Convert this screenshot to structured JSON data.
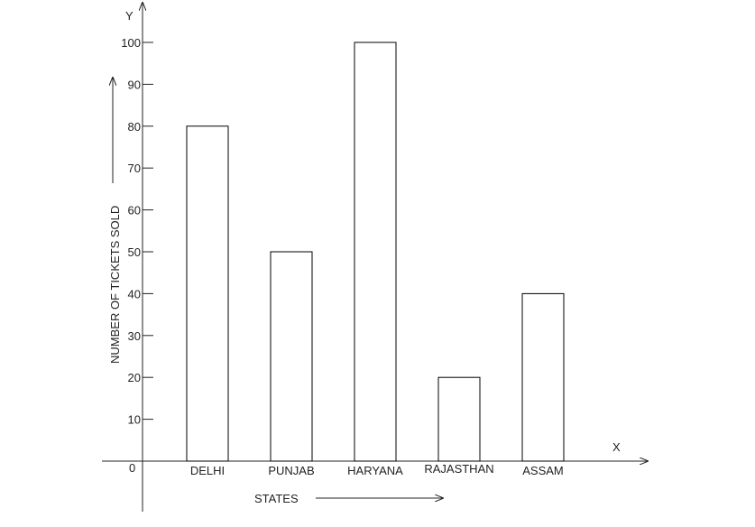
{
  "chart_data": {
    "type": "bar",
    "categories": [
      "DELHI",
      "PUNJAB",
      "HARYANA",
      "RAJASTHAN",
      "ASSAM"
    ],
    "values": [
      80,
      50,
      100,
      20,
      40
    ],
    "title": "",
    "xlabel": "STATES",
    "ylabel": "NUMBER OF TICKETS SOLD",
    "x_axis_letter": "X",
    "y_axis_letter": "Y",
    "origin_label": "0",
    "ylim": [
      0,
      100
    ],
    "y_ticks": [
      10,
      20,
      30,
      40,
      50,
      60,
      70,
      80,
      90,
      100
    ],
    "grid": false,
    "bar_fill": "#ffffff",
    "bar_stroke": "#000000"
  }
}
